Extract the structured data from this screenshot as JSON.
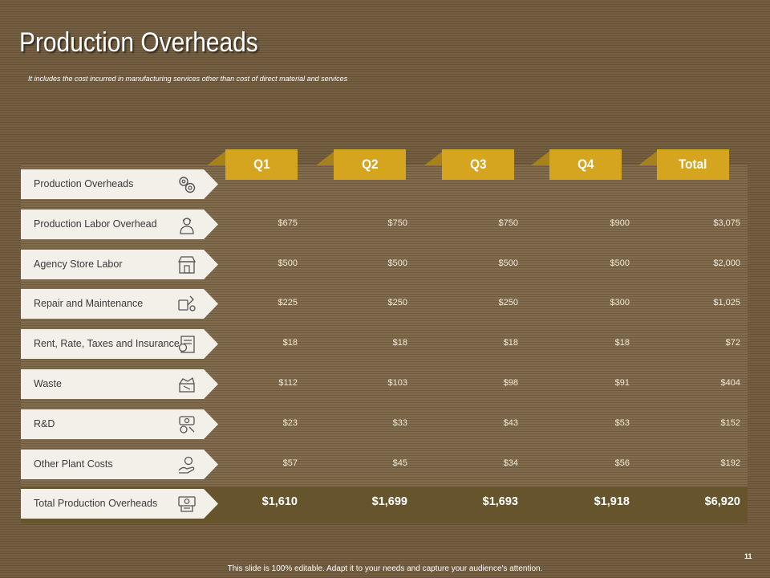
{
  "title": "Production Overheads",
  "subtitle": "It includes the cost incurred in manufacturing services other than cost of direct material and services",
  "columns": [
    "Q1",
    "Q2",
    "Q3",
    "Q4",
    "Total"
  ],
  "rows": [
    {
      "label": "Production Overheads",
      "icon": "gears-icon",
      "values": [
        "",
        "",
        "",
        "",
        ""
      ]
    },
    {
      "label": "Production Labor Overhead",
      "icon": "worker-icon",
      "values": [
        "$675",
        "$750",
        "$750",
        "$900",
        "$3,075"
      ]
    },
    {
      "label": "Agency Store Labor",
      "icon": "store-icon",
      "values": [
        "$500",
        "$500",
        "$500",
        "$500",
        "$2,000"
      ]
    },
    {
      "label": "Repair and Maintenance",
      "icon": "repair-tools-icon",
      "values": [
        "$225",
        "$250",
        "$250",
        "$300",
        "$1,025"
      ]
    },
    {
      "label": "Rent, Rate, Taxes and Insurance",
      "icon": "tax-document-icon",
      "values": [
        "$18",
        "$18",
        "$18",
        "$18",
        "$72"
      ]
    },
    {
      "label": "Waste",
      "icon": "waste-icon",
      "values": [
        "$112",
        "$103",
        "$98",
        "$91",
        "$404"
      ]
    },
    {
      "label": "R&D",
      "icon": "research-icon",
      "values": [
        "$23",
        "$33",
        "$43",
        "$53",
        "$152"
      ]
    },
    {
      "label": "Other Plant Costs",
      "icon": "plant-costs-icon",
      "values": [
        "$57",
        "$45",
        "$34",
        "$56",
        "$192"
      ]
    },
    {
      "label": "Total Production Overheads",
      "icon": "money-register-icon",
      "values": [
        "$1,610",
        "$1,699",
        "$1,693",
        "$1,918",
        "$6,920"
      ]
    }
  ],
  "footer": "This slide is 100% editable. Adapt it to your needs and capture your audience's attention.",
  "page_number": "11",
  "colors": {
    "accent": "#d6a520",
    "background": "#6f5a3c",
    "label_bg": "#f3efe9"
  }
}
